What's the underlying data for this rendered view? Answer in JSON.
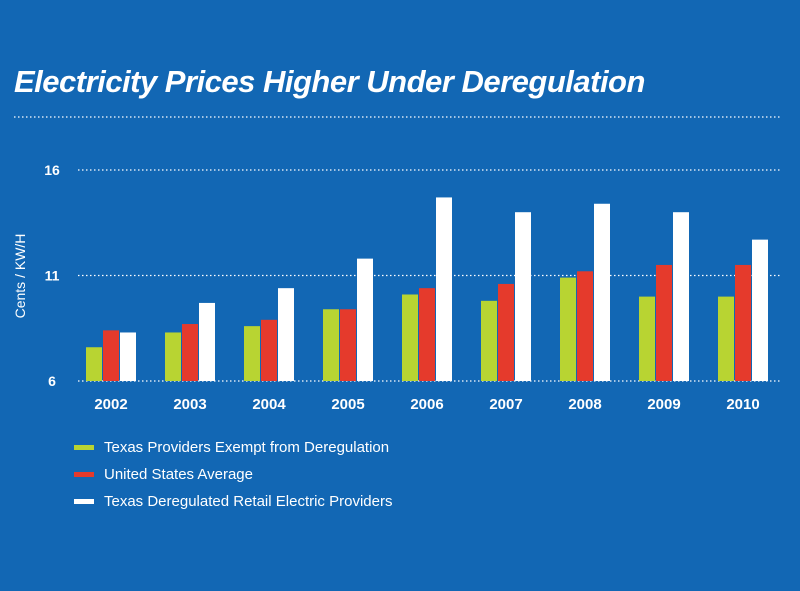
{
  "chart_data": {
    "type": "bar",
    "title": "Electricity Prices Higher Under Deregulation",
    "ylabel": "Cents / KW/H",
    "xlabel": "",
    "ylim": [
      6,
      16
    ],
    "yticks": [
      6,
      11,
      16
    ],
    "grid": true,
    "legend_position": "bottom-left",
    "categories": [
      "2002",
      "2003",
      "2004",
      "2005",
      "2006",
      "2007",
      "2008",
      "2009",
      "2010"
    ],
    "series": [
      {
        "name": "Texas Providers Exempt from Deregulation",
        "color": "#b8d432",
        "values": [
          7.6,
          8.3,
          8.6,
          9.4,
          10.1,
          9.8,
          10.9,
          10.0,
          10.0
        ]
      },
      {
        "name": "United States Average",
        "color": "#e53a2c",
        "values": [
          8.4,
          8.7,
          8.9,
          9.4,
          10.4,
          10.6,
          11.2,
          11.5,
          11.5
        ]
      },
      {
        "name": "Texas Deregulated Retail Electric Providers",
        "color": "#ffffff",
        "values": [
          8.3,
          9.7,
          10.4,
          11.8,
          14.7,
          14.0,
          14.4,
          14.0,
          12.7
        ]
      }
    ]
  }
}
